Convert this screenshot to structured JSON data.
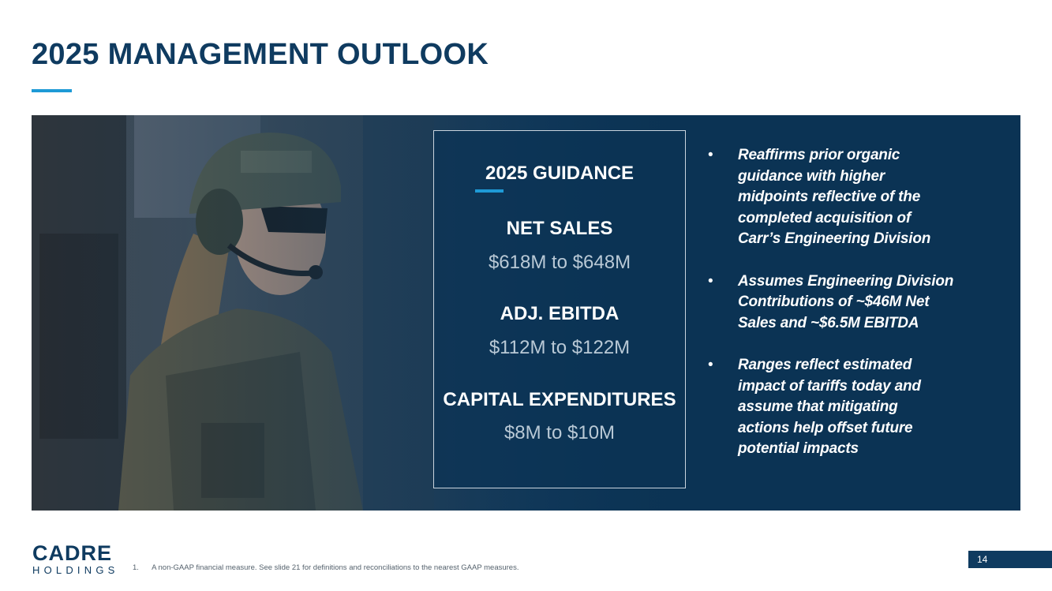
{
  "title": "2025 MANAGEMENT OUTLOOK",
  "guidance": {
    "heading": "2025 GUIDANCE",
    "items": [
      {
        "label": "NET SALES",
        "value": "$618M to $648M"
      },
      {
        "label": "ADJ. EBITDA",
        "value": "$112M to $122M"
      },
      {
        "label": "CAPITAL EXPENDITURES",
        "value": "$8M to $10M"
      }
    ]
  },
  "bullets": [
    {
      "lines": [
        "Reaffirms prior organic",
        "guidance with higher",
        "midpoints reflective of the",
        "completed acquisition of",
        "Carr’s Engineering Division"
      ]
    },
    {
      "lines": [
        "Assumes Engineering Division",
        "Contributions of ~$46M Net",
        "Sales and ~$6.5M EBITDA"
      ]
    },
    {
      "lines": [
        "Ranges reflect estimated",
        "impact of tariffs today and",
        "assume that mitigating",
        "actions help offset future",
        "potential impacts"
      ]
    }
  ],
  "bullet_symbol": "•",
  "logo": {
    "main": "CADRE",
    "sub": "HOLDINGS"
  },
  "footnote": {
    "number": "1.",
    "text": "A non-GAAP financial measure. See slide 21 for definitions and reconciliations to the nearest GAAP measures."
  },
  "page_number": "14",
  "colors": {
    "navy": "#0f3b60",
    "panel": "#0b3354",
    "accent": "#1e9ad6"
  }
}
